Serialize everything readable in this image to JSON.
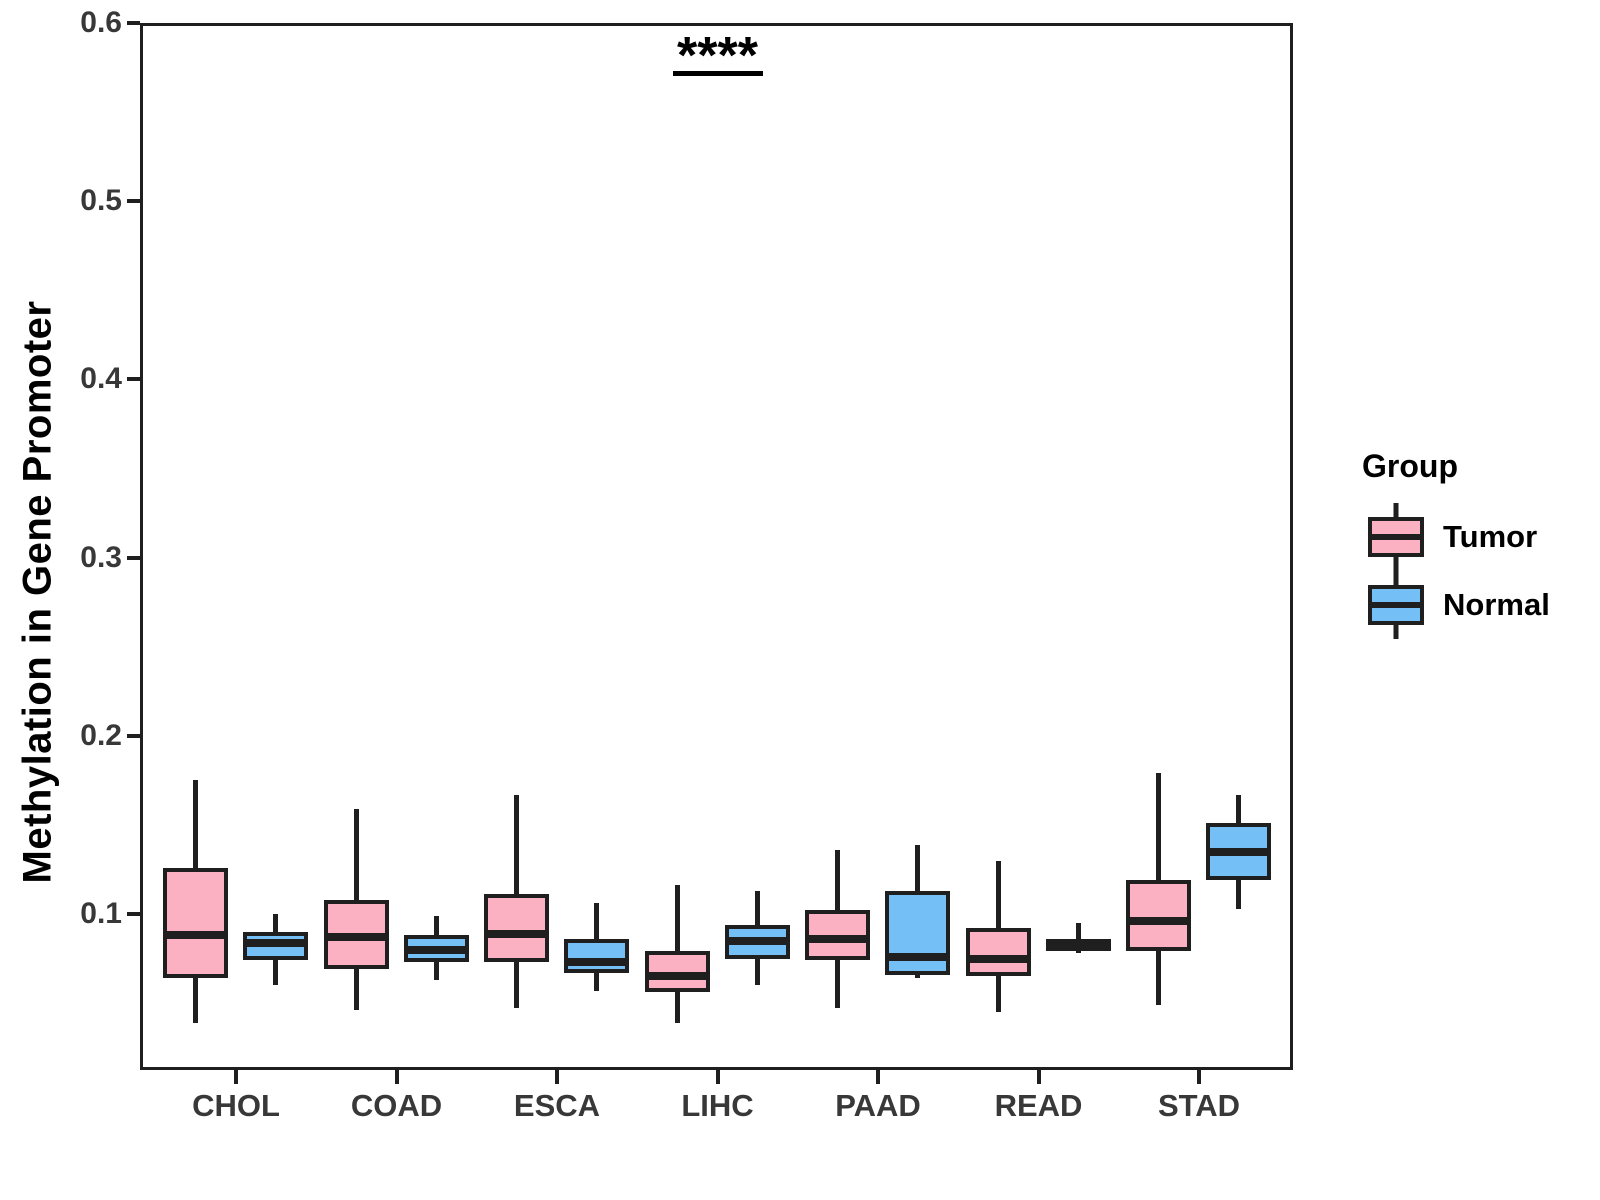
{
  "chart_data": {
    "type": "boxplot",
    "title": "",
    "xlabel": "",
    "ylabel": "Methylation in Gene Promoter",
    "categories": [
      "CHOL",
      "COAD",
      "ESCA",
      "LIHC",
      "PAAD",
      "READ",
      "STAD"
    ],
    "y_axis": {
      "tick_values": [
        0.6,
        0.5,
        0.4,
        0.3,
        0.2,
        0.1
      ],
      "tick_labels": [
        "0.6",
        "0.5",
        "0.4",
        "0.3",
        "0.2",
        "0.1"
      ],
      "range": [
        0.0125,
        0.6
      ]
    },
    "grid": "off",
    "legend": {
      "title": "Group",
      "position": "right",
      "entries": [
        {
          "label": "Tumor",
          "color": "#FBB1C1"
        },
        {
          "label": "Normal",
          "color": "#73BFF6"
        }
      ]
    },
    "series": [
      {
        "name": "Tumor",
        "color": "#FBB1C1",
        "boxes": [
          {
            "category": "CHOL",
            "whisker_low": 0.039,
            "q1": 0.064,
            "median": 0.088,
            "q3": 0.126,
            "whisker_high": 0.175
          },
          {
            "category": "COAD",
            "whisker_low": 0.046,
            "q1": 0.069,
            "median": 0.087,
            "q3": 0.108,
            "whisker_high": 0.159
          },
          {
            "category": "ESCA",
            "whisker_low": 0.047,
            "q1": 0.073,
            "median": 0.089,
            "q3": 0.111,
            "whisker_high": 0.167
          },
          {
            "category": "LIHC",
            "whisker_low": 0.039,
            "q1": 0.056,
            "median": 0.065,
            "q3": 0.079,
            "whisker_high": 0.116
          },
          {
            "category": "PAAD",
            "whisker_low": 0.047,
            "q1": 0.074,
            "median": 0.086,
            "q3": 0.102,
            "whisker_high": 0.136
          },
          {
            "category": "READ",
            "whisker_low": 0.045,
            "q1": 0.065,
            "median": 0.075,
            "q3": 0.092,
            "whisker_high": 0.13
          },
          {
            "category": "STAD",
            "whisker_low": 0.049,
            "q1": 0.079,
            "median": 0.096,
            "q3": 0.119,
            "whisker_high": 0.179
          }
        ]
      },
      {
        "name": "Normal",
        "color": "#73BFF6",
        "boxes": [
          {
            "category": "CHOL",
            "whisker_low": 0.06,
            "q1": 0.074,
            "median": 0.084,
            "q3": 0.09,
            "whisker_high": 0.1
          },
          {
            "category": "COAD",
            "whisker_low": 0.063,
            "q1": 0.073,
            "median": 0.08,
            "q3": 0.088,
            "whisker_high": 0.099
          },
          {
            "category": "ESCA",
            "whisker_low": 0.057,
            "q1": 0.067,
            "median": 0.073,
            "q3": 0.086,
            "whisker_high": 0.106
          },
          {
            "category": "LIHC",
            "whisker_low": 0.06,
            "q1": 0.075,
            "median": 0.085,
            "q3": 0.094,
            "whisker_high": 0.113
          },
          {
            "category": "PAAD",
            "whisker_low": 0.064,
            "q1": 0.066,
            "median": 0.076,
            "q3": 0.113,
            "whisker_high": 0.139
          },
          {
            "category": "READ",
            "whisker_low": 0.078,
            "q1": 0.079,
            "median": 0.082,
            "q3": 0.086,
            "whisker_high": 0.095
          },
          {
            "category": "STAD",
            "whisker_low": 0.103,
            "q1": 0.119,
            "median": 0.135,
            "q3": 0.151,
            "whisker_high": 0.167
          }
        ]
      }
    ],
    "annotation": {
      "text": "****",
      "category": "LIHC",
      "bar_y": 0.572
    }
  },
  "colors": {
    "background": "#FFFFFF",
    "box_outline": "#1F1F1F",
    "axis_text": "#383838",
    "title_text": "#000000",
    "tumor_fill": "#FBB1C1",
    "normal_fill": "#73BFF6"
  }
}
